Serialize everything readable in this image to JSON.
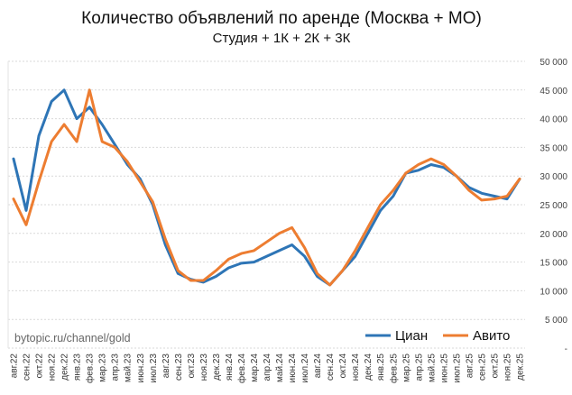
{
  "chart_data": {
    "type": "line",
    "title": "Количество объявлений по аренде (Москва + МО)",
    "subtitle": "Студия + 1К + 2К + 3К",
    "watermark": "bytopic.ru/channel/gold",
    "ylim": [
      0,
      50000
    ],
    "yticks": [
      {
        "value": 0,
        "label": "-"
      },
      {
        "value": 5000,
        "label": "5 000"
      },
      {
        "value": 10000,
        "label": "10 000"
      },
      {
        "value": 15000,
        "label": "15 000"
      },
      {
        "value": 20000,
        "label": "20 000"
      },
      {
        "value": 25000,
        "label": "25 000"
      },
      {
        "value": 30000,
        "label": "30 000"
      },
      {
        "value": 35000,
        "label": "35 000"
      },
      {
        "value": 40000,
        "label": "40 000"
      },
      {
        "value": 45000,
        "label": "45 000"
      },
      {
        "value": 50000,
        "label": "50 000"
      }
    ],
    "grid": true,
    "legend": "bottom-right",
    "categories": [
      "авг.22",
      "сен.22",
      "окт.22",
      "ноя.22",
      "дек.22",
      "янв.23",
      "фев.23",
      "мар.23",
      "апр.23",
      "май.23",
      "июн.23",
      "июл.23",
      "авг.23",
      "сен.23",
      "окт.23",
      "ноя.23",
      "дек.23",
      "янв.24",
      "фев.24",
      "мар.24",
      "апр.24",
      "май.24",
      "июн.24",
      "июл.24",
      "авг.24",
      "сен.24",
      "окт.24",
      "ноя.24",
      "дек.24",
      "янв.25",
      "фев.25",
      "мар.25",
      "апр.25",
      "май.25",
      "июн.25",
      "июл.25",
      "авг.25",
      "сен.25",
      "окт.25",
      "ноя.25",
      "дек.25"
    ],
    "series": [
      {
        "name": "Циан",
        "color": "#2e75b6",
        "values": [
          33000,
          24000,
          37000,
          43000,
          45000,
          40000,
          42000,
          39000,
          35500,
          32000,
          29500,
          25000,
          18000,
          13000,
          12000,
          11500,
          12500,
          14000,
          14800,
          15000,
          16000,
          17000,
          18000,
          16000,
          12500,
          11000,
          13500,
          16000,
          20000,
          24000,
          26500,
          30500,
          31000,
          32000,
          31500,
          30000,
          28000,
          27000,
          26500,
          26000,
          29500
        ]
      },
      {
        "name": "Авито",
        "color": "#ed7d31",
        "values": [
          26000,
          21500,
          29000,
          36000,
          39000,
          36000,
          45000,
          36000,
          35000,
          32500,
          29000,
          25500,
          19000,
          13500,
          11800,
          11800,
          13500,
          15500,
          16500,
          17000,
          18500,
          20000,
          21000,
          17500,
          13000,
          11000,
          13500,
          17000,
          21000,
          25000,
          27500,
          30500,
          32000,
          33000,
          32000,
          30000,
          27500,
          25800,
          26000,
          26500,
          29500
        ]
      }
    ]
  }
}
